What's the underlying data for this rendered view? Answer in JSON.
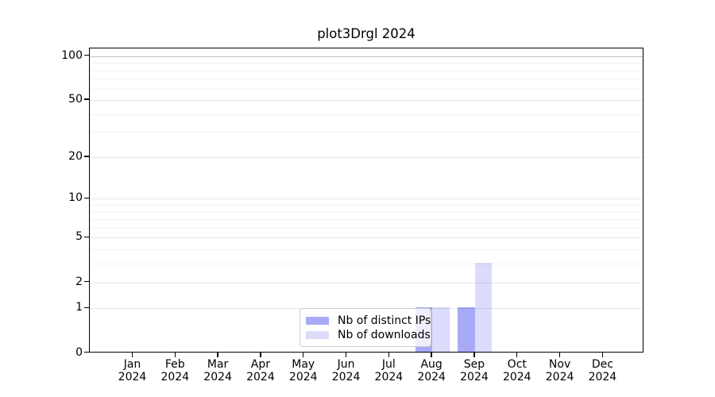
{
  "title": "plot3Drgl 2024",
  "chart_data": {
    "type": "bar",
    "title": "plot3Drgl 2024",
    "categories": [
      "Jan",
      "Feb",
      "Mar",
      "Apr",
      "May",
      "Jun",
      "Jul",
      "Aug",
      "Sep",
      "Oct",
      "Nov",
      "Dec"
    ],
    "year": "2024",
    "series": [
      {
        "name": "Nb of distinct IPs",
        "color": "#a9aaf6",
        "values": [
          0,
          0,
          0,
          0,
          0,
          0,
          0,
          1,
          1,
          0,
          0,
          0
        ]
      },
      {
        "name": "Nb of downloads",
        "color": "#dbdcf9",
        "values": [
          0,
          0,
          0,
          0,
          0,
          0,
          0,
          1,
          3,
          0,
          0,
          0
        ]
      }
    ],
    "yscale": "log1p",
    "ylim": [
      0,
      113
    ],
    "y_major_ticks": [
      0,
      1,
      2,
      5,
      10,
      20,
      50,
      100
    ],
    "y_minor_gridlines": [
      3,
      4,
      6,
      7,
      8,
      9,
      30,
      40,
      60,
      70,
      80,
      90
    ],
    "grid": "horizontal",
    "legend_position": "bottom-center",
    "frame_color": "#000000",
    "emphasized_gridline": 100
  }
}
